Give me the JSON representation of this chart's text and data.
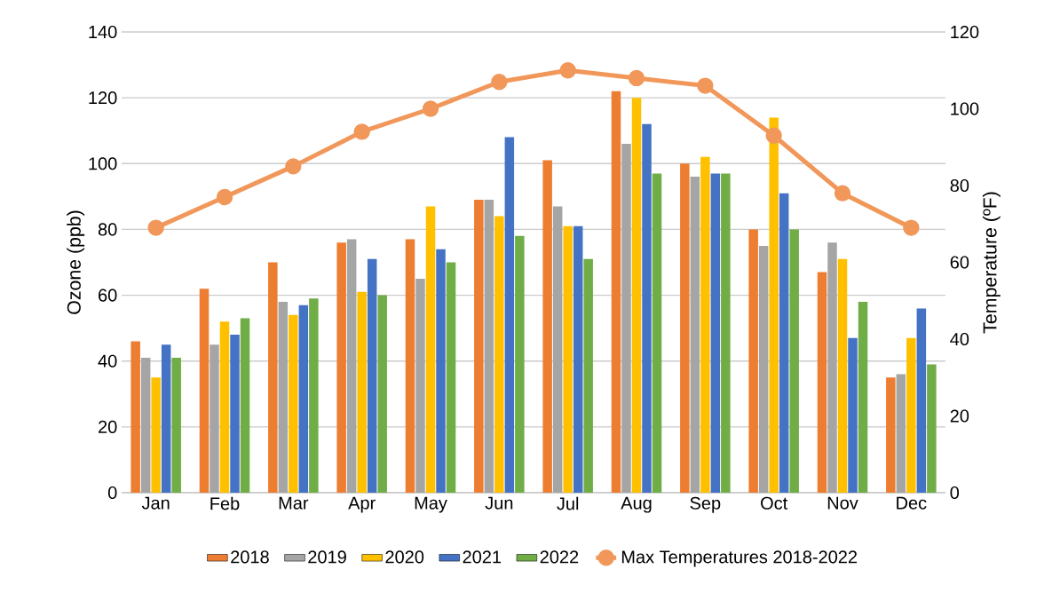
{
  "chart_data": {
    "type": "bar",
    "ylabel": "Ozone (ppb)",
    "y2label": "Temperature (ºF)",
    "categories": [
      "Jan",
      "Feb",
      "Mar",
      "Apr",
      "May",
      "Jun",
      "Jul",
      "Aug",
      "Sep",
      "Oct",
      "Nov",
      "Dec"
    ],
    "series": [
      {
        "name": "2018",
        "color": "#ed7d31",
        "values": [
          46,
          62,
          70,
          76,
          77,
          89,
          101,
          122,
          100,
          80,
          67,
          35
        ]
      },
      {
        "name": "2019",
        "color": "#a5a5a5",
        "values": [
          41,
          45,
          58,
          77,
          65,
          89,
          87,
          106,
          96,
          75,
          76,
          36
        ]
      },
      {
        "name": "2020",
        "color": "#ffc000",
        "values": [
          35,
          52,
          54,
          61,
          87,
          84,
          81,
          120,
          102,
          114,
          71,
          47
        ]
      },
      {
        "name": "2021",
        "color": "#4472c4",
        "values": [
          45,
          48,
          57,
          71,
          74,
          108,
          81,
          112,
          97,
          91,
          47,
          56
        ]
      },
      {
        "name": "2022",
        "color": "#70ad47",
        "values": [
          41,
          53,
          59,
          60,
          70,
          78,
          71,
          97,
          97,
          80,
          58,
          39
        ]
      },
      {
        "name": "Max Temperatures 2018-2022",
        "type": "line",
        "axis": "y2",
        "color": "#f1975a",
        "marker": "circle",
        "values": [
          69,
          77,
          85,
          94,
          100,
          107,
          110,
          108,
          106,
          93,
          78,
          69
        ]
      }
    ],
    "ylim": [
      0,
      140
    ],
    "yticks": [
      0,
      20,
      40,
      60,
      80,
      100,
      120,
      140
    ],
    "y2lim": [
      0,
      120
    ],
    "y2ticks": [
      0,
      20,
      40,
      60,
      80,
      100,
      120
    ],
    "grid": "y",
    "legend": "bottom"
  }
}
